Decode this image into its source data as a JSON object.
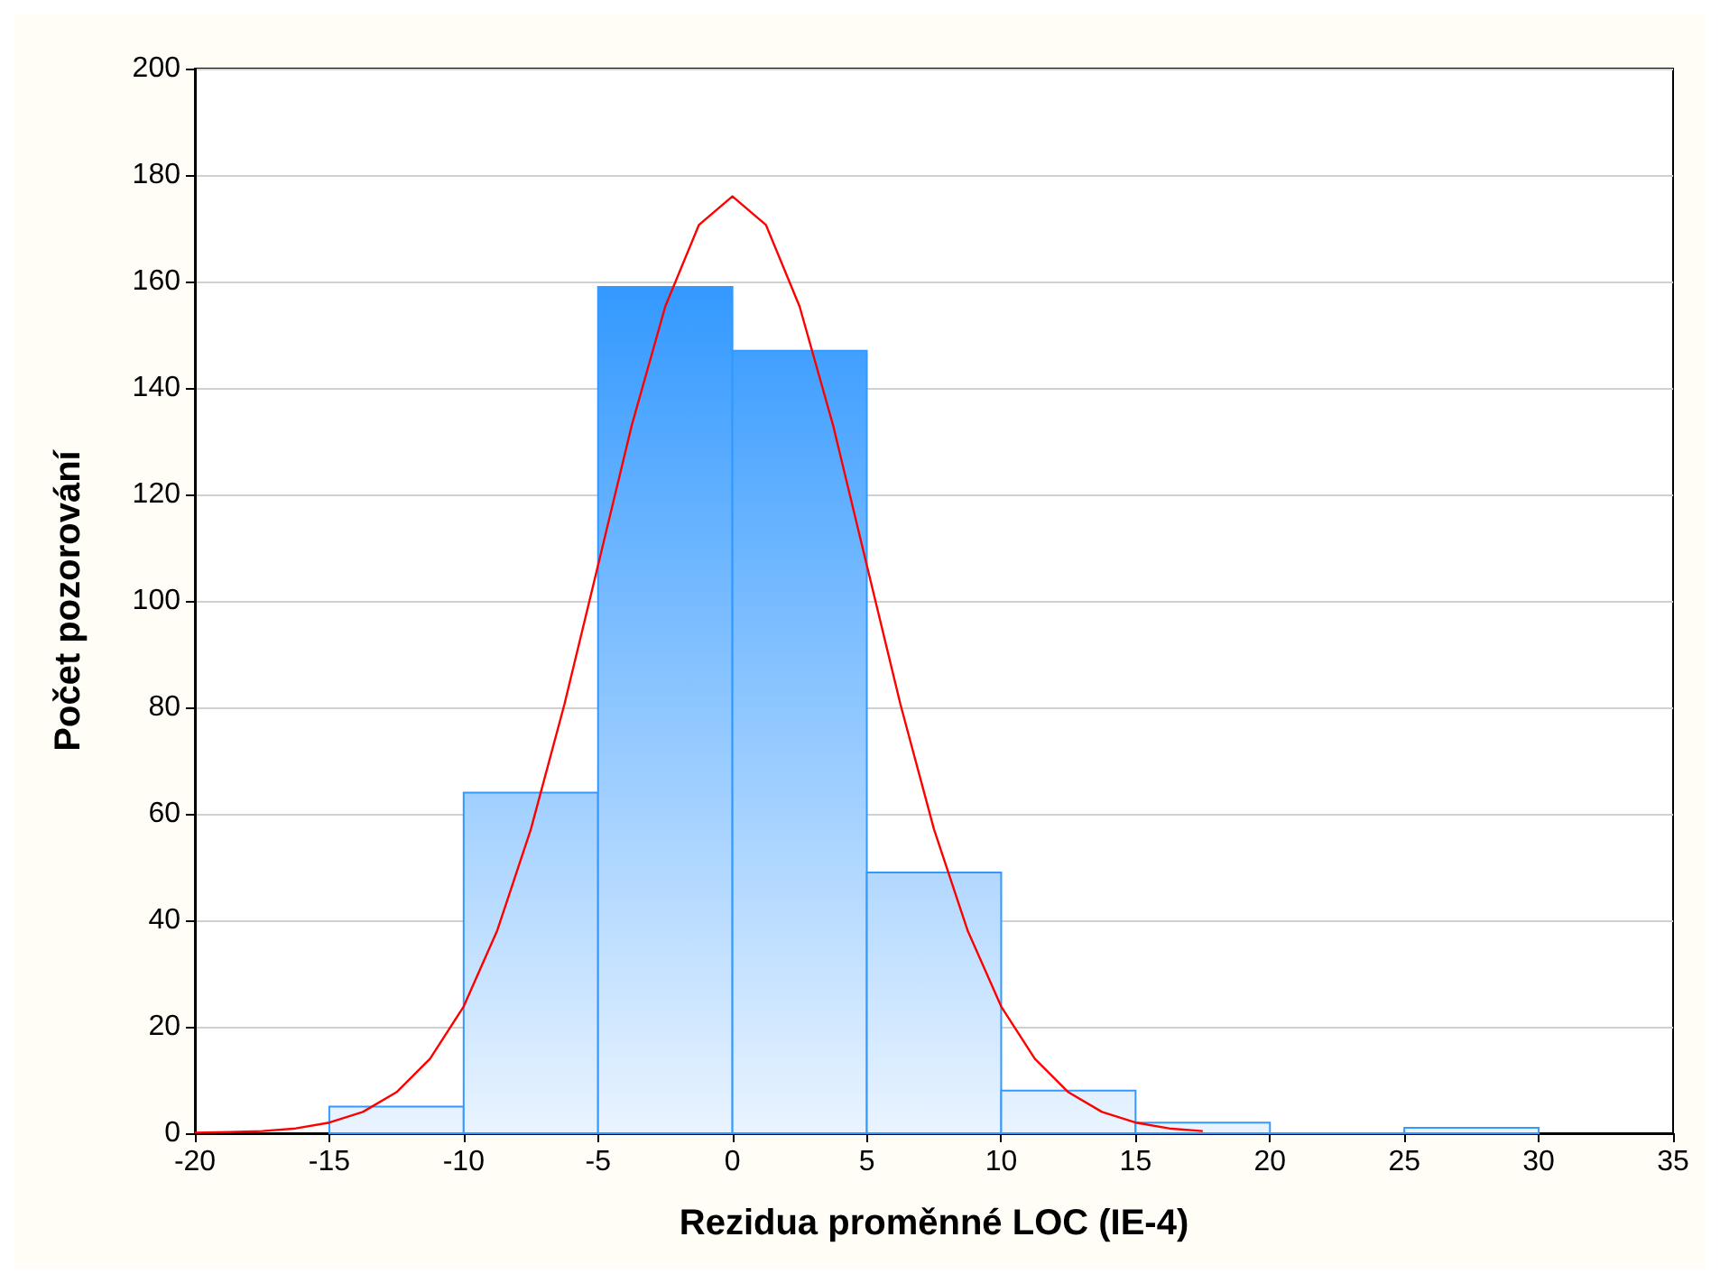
{
  "chart_data": {
    "type": "histogram",
    "xlabel": "Rezidua proměnné LOC (IE-4)",
    "ylabel": "Počet pozorování",
    "bins": [
      -15,
      -10,
      -5,
      0,
      5,
      10,
      15,
      20,
      25,
      30
    ],
    "values": [
      5,
      64,
      159,
      147,
      49,
      8,
      2,
      0,
      1
    ],
    "color": "#3399ff",
    "series": [
      {
        "type": "line",
        "color": "#ff0000",
        "x": [
          -20,
          -18.75,
          -17.5,
          -16.25,
          -15,
          -13.75,
          -12.5,
          -11.25,
          -10,
          -8.75,
          -7.5,
          -6.25,
          -5,
          -3.75,
          -2.5,
          -1.25,
          0,
          1.25,
          2.5,
          3.75,
          5,
          6.25,
          7.5,
          8.75,
          10,
          11.25,
          12.5,
          13.75,
          15,
          16.25,
          17.5
        ],
        "values": [
          0.1,
          0.2,
          0.4,
          0.9,
          2,
          4,
          7.7,
          14,
          23.8,
          38.1,
          57.1,
          80.6,
          106.7,
          132.9,
          155.3,
          170.6,
          176,
          170.6,
          155.3,
          132.9,
          106.7,
          80.6,
          57.1,
          38.1,
          23.8,
          14,
          7.7,
          4,
          2,
          0.9,
          0.4
        ]
      }
    ],
    "xlim": [
      -20,
      35
    ],
    "xticks": [
      -20,
      -15,
      -10,
      -5,
      0,
      5,
      10,
      15,
      20,
      25,
      30,
      35
    ],
    "ylim": [
      0,
      200
    ],
    "yticks": [
      0,
      20,
      40,
      60,
      80,
      100,
      120,
      140,
      160,
      180,
      200
    ],
    "grid": "y"
  }
}
